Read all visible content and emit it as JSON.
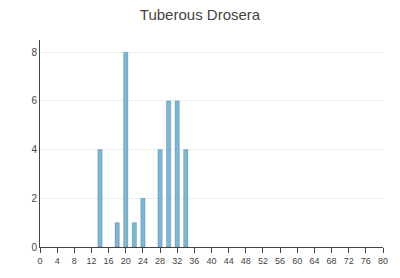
{
  "chart_data": {
    "type": "bar",
    "title": "Tuberous Drosera",
    "x": [
      14,
      18,
      20,
      22,
      24,
      28,
      30,
      32,
      34
    ],
    "values": [
      4,
      1,
      8,
      1,
      2,
      4,
      6,
      6,
      4
    ],
    "color": "#7ab8d9",
    "xlim": [
      0,
      80
    ],
    "xticks": [
      0,
      4,
      8,
      12,
      16,
      20,
      24,
      28,
      32,
      36,
      40,
      44,
      48,
      52,
      56,
      60,
      64,
      68,
      72,
      76,
      80
    ],
    "ylim": [
      0,
      8.5
    ],
    "yticks": [
      0,
      2,
      4,
      6,
      8
    ],
    "grid": true
  }
}
